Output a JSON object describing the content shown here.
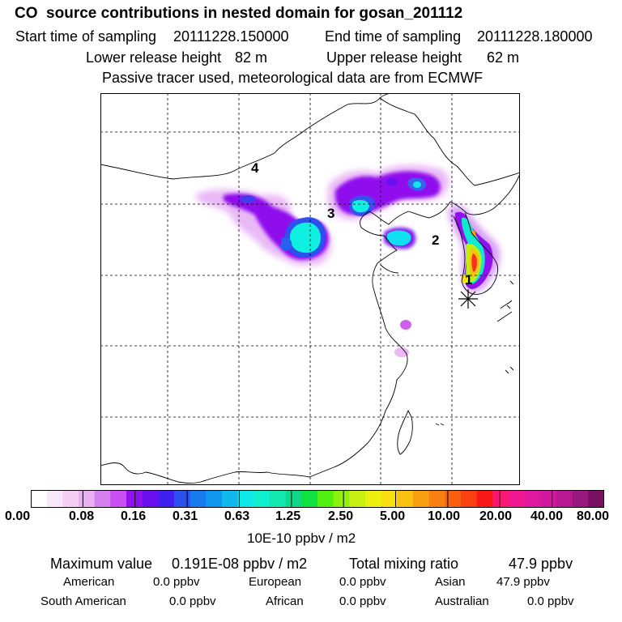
{
  "header": {
    "title": "CO  source contributions in nested domain for gosan_201112",
    "start_label": "Start time of sampling",
    "start_value": "20111228.150000",
    "end_label": "End time of sampling",
    "end_value": "20111228.180000",
    "lower_label": "Lower release height",
    "lower_value": "82 m",
    "upper_label": "Upper release height",
    "upper_value": "62 m",
    "note": "Passive tracer used, meteorological data are from ECMWF"
  },
  "map": {
    "source_labels": [
      "1",
      "2",
      "3",
      "4"
    ],
    "receptor_marker": "star"
  },
  "colorbar": {
    "ticks": [
      "0.00",
      "0.08",
      "0.16",
      "0.31",
      "0.63",
      "1.25",
      "2.50",
      "5.00",
      "10.00",
      "20.00",
      "40.00",
      "80.00"
    ],
    "units": "10E-10 ppbv / m2",
    "colors": [
      "#ffffff",
      "#fbe7fb",
      "#f5cdf5",
      "#eab0f3",
      "#d67ff0",
      "#c94ff0",
      "#9010ee",
      "#6a10ee",
      "#4020ee",
      "#2b50ee",
      "#1878ee",
      "#1098ee",
      "#10b8ee",
      "#10e8e8",
      "#10f0d0",
      "#10e8b0",
      "#10d888",
      "#10e040",
      "#50f010",
      "#90f010",
      "#c8f010",
      "#ecf010",
      "#f8e010",
      "#f8c010",
      "#f8a010",
      "#f88010",
      "#f86010",
      "#f84010",
      "#f81818",
      "#f81870",
      "#f01890",
      "#e018a0",
      "#d0189c",
      "#b81890",
      "#981880",
      "#781060"
    ]
  },
  "footer": {
    "max_label": "Maximum value",
    "max_value": "0.191E-08 ppbv / m2",
    "total_label": "Total mixing ratio",
    "total_value": "47.9 ppbv",
    "regions": [
      {
        "name": "American",
        "value": "0.0 ppbv"
      },
      {
        "name": "European",
        "value": "0.0 ppbv"
      },
      {
        "name": "Asian",
        "value": "47.9 ppbv"
      },
      {
        "name": "South American",
        "value": "0.0 ppbv"
      },
      {
        "name": "African",
        "value": "0.0 ppbv"
      },
      {
        "name": "Australian",
        "value": "0.0 ppbv"
      }
    ]
  }
}
